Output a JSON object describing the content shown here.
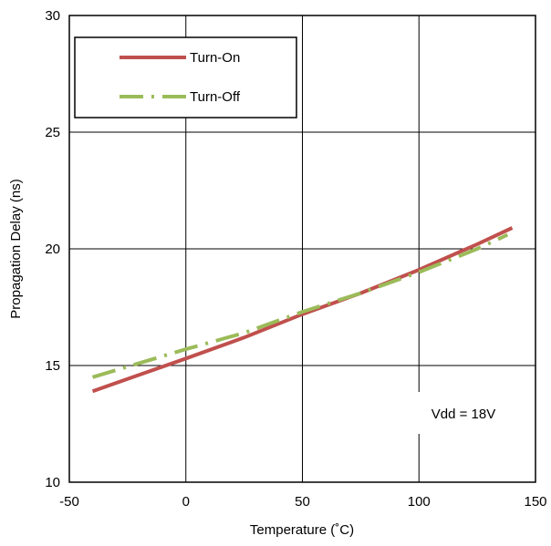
{
  "chart_data": {
    "type": "line",
    "xlabel": "Temperature (˚C)",
    "ylabel": "Propagation Delay (ns)",
    "xlim": [
      -50,
      150
    ],
    "ylim": [
      10,
      30
    ],
    "xticks": [
      -50,
      0,
      50,
      100,
      150
    ],
    "yticks": [
      10,
      15,
      20,
      25,
      30
    ],
    "xtick_labels": [
      "-50",
      "0",
      "50",
      "100",
      "150"
    ],
    "ytick_labels": [
      "10",
      "15",
      "20",
      "25",
      "30"
    ],
    "grid": true,
    "legend_position": "top-left",
    "series": [
      {
        "name": "Turn-On",
        "color": "#c0504d",
        "style": "solid",
        "x": [
          -40,
          -20,
          0,
          25,
          50,
          75,
          100,
          125,
          140
        ],
        "y": [
          13.9,
          14.6,
          15.3,
          16.2,
          17.2,
          18.1,
          19.1,
          20.2,
          20.9
        ]
      },
      {
        "name": "Turn-Off",
        "color": "#9bbb59",
        "style": "dash-dot",
        "x": [
          -40,
          -20,
          0,
          25,
          50,
          75,
          100,
          125,
          138
        ],
        "y": [
          14.5,
          15.1,
          15.7,
          16.4,
          17.3,
          18.1,
          19.0,
          20.0,
          20.6
        ]
      }
    ],
    "annotations": [
      {
        "text": "Vdd = 18V"
      }
    ]
  }
}
